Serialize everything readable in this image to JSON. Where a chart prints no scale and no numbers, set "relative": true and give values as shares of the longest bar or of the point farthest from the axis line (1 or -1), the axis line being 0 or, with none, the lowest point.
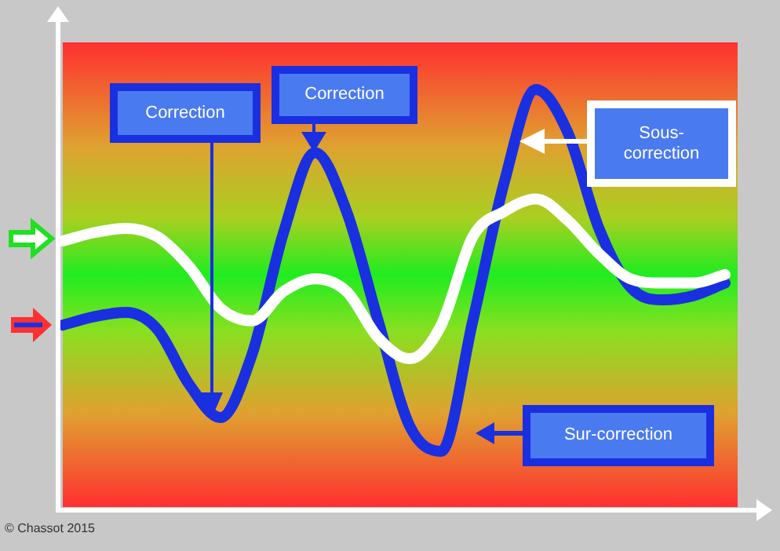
{
  "chart_data": {
    "type": "line",
    "relative": true,
    "legend": false,
    "marker": "none",
    "line_style": "solid",
    "categories": [
      null,
      null,
      null,
      null,
      null,
      null,
      null,
      null,
      null,
      null,
      null,
      null,
      null,
      null,
      null,
      null,
      null,
      null,
      null,
      null,
      null,
      null
    ],
    "series": [
      {
        "color": "#ffffff",
        "values": [
          0.64,
          0.66,
          0.67,
          0.65,
          0.58,
          0.48,
          0.45,
          0.52,
          0.55,
          0.52,
          0.41,
          0.36,
          0.44,
          0.65,
          0.71,
          0.74,
          0.69,
          0.61,
          0.55,
          0.54,
          0.54,
          0.56
        ]
      },
      {
        "color": "#1a2fe0",
        "values": [
          0.44,
          0.46,
          0.47,
          0.43,
          0.3,
          0.22,
          0.37,
          0.66,
          0.85,
          0.71,
          0.45,
          0.2,
          0.14,
          0.45,
          0.78,
          1,
          0.9,
          0.67,
          0.53,
          0.5,
          0.51,
          0.54
        ]
      }
    ],
    "annotations": [
      "Correction",
      "Correction",
      "Sous-correction",
      "Sur-correction",
      "© Chassot 2015"
    ]
  }
}
